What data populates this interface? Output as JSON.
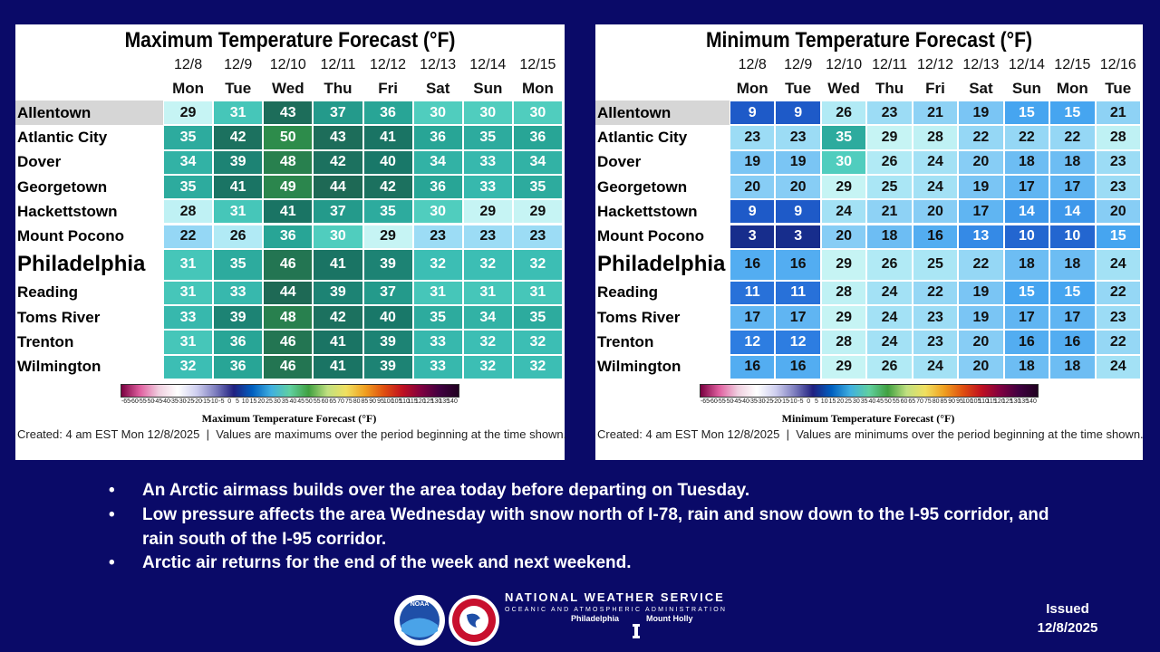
{
  "panels": [
    {
      "title": "Maximum Temperature Forecast (°F)",
      "dates": [
        "12/8",
        "12/9",
        "12/10",
        "12/11",
        "12/12",
        "12/13",
        "12/14",
        "12/15"
      ],
      "days": [
        "Mon",
        "Tue",
        "Wed",
        "Thu",
        "Fri",
        "Sat",
        "Sun",
        "Mon"
      ],
      "rows": [
        {
          "city": "Allentown",
          "values": [
            29,
            31,
            43,
            37,
            36,
            30,
            30,
            30
          ]
        },
        {
          "city": "Atlantic City",
          "values": [
            35,
            42,
            50,
            43,
            41,
            36,
            35,
            36
          ]
        },
        {
          "city": "Dover",
          "values": [
            34,
            39,
            48,
            42,
            40,
            34,
            33,
            34
          ]
        },
        {
          "city": "Georgetown",
          "values": [
            35,
            41,
            49,
            44,
            42,
            36,
            33,
            35
          ]
        },
        {
          "city": "Hackettstown",
          "values": [
            28,
            31,
            41,
            37,
            35,
            30,
            29,
            29
          ]
        },
        {
          "city": "Mount Pocono",
          "values": [
            22,
            26,
            36,
            30,
            29,
            23,
            23,
            23
          ]
        },
        {
          "city": "Philadelphia",
          "values": [
            31,
            35,
            46,
            41,
            39,
            32,
            32,
            32
          ]
        },
        {
          "city": "Reading",
          "values": [
            31,
            33,
            44,
            39,
            37,
            31,
            31,
            31
          ]
        },
        {
          "city": "Toms River",
          "values": [
            33,
            39,
            48,
            42,
            40,
            35,
            34,
            35
          ]
        },
        {
          "city": "Trenton",
          "values": [
            31,
            36,
            46,
            41,
            39,
            33,
            32,
            32
          ]
        },
        {
          "city": "Wilmington",
          "values": [
            32,
            36,
            46,
            41,
            39,
            33,
            32,
            32
          ]
        }
      ],
      "colorbar_ticks": [
        -65,
        -60,
        -55,
        -50,
        -45,
        -40,
        -35,
        -30,
        -25,
        -20,
        -15,
        -10,
        -5,
        0,
        5,
        10,
        15,
        20,
        25,
        30,
        35,
        40,
        45,
        50,
        55,
        60,
        65,
        70,
        75,
        80,
        85,
        90,
        95,
        100,
        105,
        110,
        115,
        120,
        125,
        130,
        135,
        140
      ],
      "colorbar_title": "Maximum Temperature Forecast (°F)",
      "footer": "Created: 4 am EST Mon 12/8/2025  |  Values are maximums over the period beginning at the time shown."
    },
    {
      "title": "Minimum Temperature Forecast (°F)",
      "dates": [
        "12/8",
        "12/9",
        "12/10",
        "12/11",
        "12/12",
        "12/13",
        "12/14",
        "12/15",
        "12/16"
      ],
      "days": [
        "Mon",
        "Tue",
        "Wed",
        "Thu",
        "Fri",
        "Sat",
        "Sun",
        "Mon",
        "Tue"
      ],
      "rows": [
        {
          "city": "Allentown",
          "values": [
            9,
            9,
            26,
            23,
            21,
            19,
            15,
            15,
            21
          ]
        },
        {
          "city": "Atlantic City",
          "values": [
            23,
            23,
            35,
            29,
            28,
            22,
            22,
            22,
            28
          ]
        },
        {
          "city": "Dover",
          "values": [
            19,
            19,
            30,
            26,
            24,
            20,
            18,
            18,
            23
          ]
        },
        {
          "city": "Georgetown",
          "values": [
            20,
            20,
            29,
            25,
            24,
            19,
            17,
            17,
            23
          ]
        },
        {
          "city": "Hackettstown",
          "values": [
            9,
            9,
            24,
            21,
            20,
            17,
            14,
            14,
            20
          ]
        },
        {
          "city": "Mount Pocono",
          "values": [
            3,
            3,
            20,
            18,
            16,
            13,
            10,
            10,
            15
          ]
        },
        {
          "city": "Philadelphia",
          "values": [
            16,
            16,
            29,
            26,
            25,
            22,
            18,
            18,
            24
          ]
        },
        {
          "city": "Reading",
          "values": [
            11,
            11,
            28,
            24,
            22,
            19,
            15,
            15,
            22
          ]
        },
        {
          "city": "Toms River",
          "values": [
            17,
            17,
            29,
            24,
            23,
            19,
            17,
            17,
            23
          ]
        },
        {
          "city": "Trenton",
          "values": [
            12,
            12,
            28,
            24,
            23,
            20,
            16,
            16,
            22
          ]
        },
        {
          "city": "Wilmington",
          "values": [
            16,
            16,
            29,
            26,
            24,
            20,
            18,
            18,
            24
          ]
        }
      ],
      "colorbar_ticks": [
        -65,
        -60,
        -55,
        -50,
        -45,
        -40,
        -35,
        -30,
        -25,
        -20,
        -15,
        -10,
        -5,
        0,
        5,
        10,
        15,
        20,
        25,
        30,
        35,
        40,
        45,
        50,
        55,
        60,
        65,
        70,
        75,
        80,
        85,
        90,
        95,
        100,
        105,
        110,
        115,
        120,
        125,
        130,
        135,
        140
      ],
      "colorbar_title": "Minimum Temperature Forecast (°F)",
      "footer": "Created: 4 am EST Mon 12/8/2025  |  Values are minimums over the period beginning at the time shown."
    }
  ],
  "bullets": [
    "An Arctic airmass builds over the area today before departing on Tuesday.",
    "Low pressure affects the area Wednesday with snow north of I-78, rain and snow down to the I-95 corridor, and rain south of the I-95 corridor.",
    "Arctic air returns for the end of the week and next weekend."
  ],
  "logo": {
    "name": "NATIONAL WEATHER SERVICE",
    "subtitle": "OCEANIC AND ATMOSPHERIC ADMINISTRATION",
    "office_left": "Philadelphia",
    "office_right": "Mount Holly",
    "noaa": "NOAA"
  },
  "issued": {
    "label": "Issued",
    "date": "12/8/2025"
  }
}
